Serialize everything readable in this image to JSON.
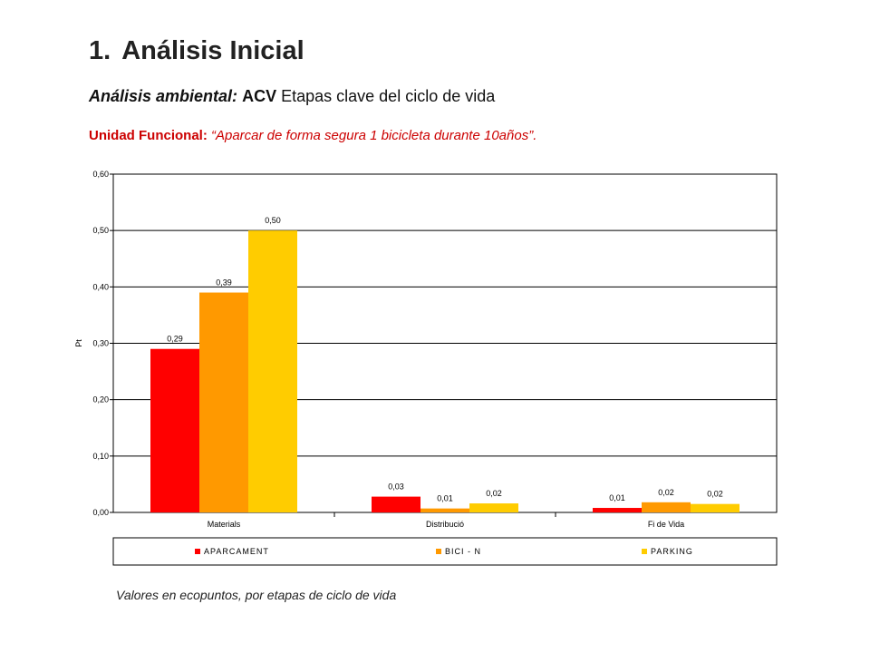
{
  "header": {
    "number": "1.",
    "title": "Análisis Inicial"
  },
  "subtitle": {
    "prefix": "Análisis ambiental:",
    "acv": "ACV",
    "rest": "Etapas clave del ciclo de vida"
  },
  "functional_unit": {
    "label": "Unidad Funcional:",
    "text": "“Aparcar de forma segura 1 bicicleta durante 10años”."
  },
  "caption": "Valores en ecopuntos, por etapas de ciclo de vida",
  "chart_data": {
    "type": "bar",
    "title": "",
    "xlabel": "",
    "ylabel": "Pt",
    "ylim": [
      0,
      0.6
    ],
    "yticks": [
      "0,00",
      "0,10",
      "0,20",
      "0,30",
      "0,40",
      "0,50",
      "0,60"
    ],
    "ytick_values": [
      0,
      0.1,
      0.2,
      0.3,
      0.4,
      0.5,
      0.6
    ],
    "grid": true,
    "legend_position": "bottom",
    "categories": [
      "Materials",
      "Distribució",
      "Fi de Vida"
    ],
    "series": [
      {
        "name": "APARCAMENT",
        "color": "#ff0000",
        "values": [
          0.29,
          0.028,
          0.008
        ],
        "labels": [
          "0,29",
          "0,03",
          "0,01"
        ]
      },
      {
        "name": "BICI - N",
        "color": "#ff9900",
        "values": [
          0.39,
          0.007,
          0.018
        ],
        "labels": [
          "0,39",
          "0,01",
          "0,02"
        ]
      },
      {
        "name": "PARKING",
        "color": "#ffcc00",
        "values": [
          0.5,
          0.016,
          0.015
        ],
        "labels": [
          "0,50",
          "0,02",
          "0,02"
        ]
      }
    ]
  }
}
